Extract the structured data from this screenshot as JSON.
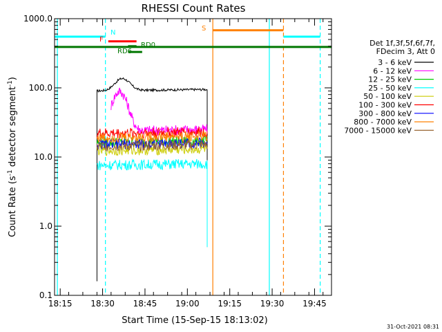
{
  "chart_data": {
    "type": "line",
    "title": "RHESSI Count Rates",
    "xlabel": "Start Time (15-Sep-15 18:13:02)",
    "ylabel_main": "Count Rate (s",
    "ylabel_sup": "-1",
    "ylabel_mid": " detector segment",
    "ylabel_tail": ")",
    "y_scale": "log",
    "ylim": [
      0.1,
      1000
    ],
    "xlim": [
      "18:13",
      "19:51"
    ],
    "x_ticks": [
      "18:15",
      "18:30",
      "18:45",
      "19:00",
      "19:15",
      "19:30",
      "19:45"
    ],
    "y_ticks": [
      "0.1",
      "1.0",
      "10.0",
      "100.0",
      "1000.0"
    ],
    "legend_header": [
      "Det 1f,3f,5f,6f,7f,",
      "FDecim 3, Att 0"
    ],
    "legend_position": "right",
    "series": [
      {
        "name": "3 - 6 keV",
        "color": "#000000",
        "start": "18:28",
        "end": "19:07",
        "level": 95,
        "peak_time": "18:37",
        "peak": 140
      },
      {
        "name": "6 - 12 keV",
        "color": "#ff00ff",
        "start": "18:33",
        "end": "19:07",
        "level": 25,
        "peak_time": "18:36",
        "peak": 90
      },
      {
        "name": "12 - 25 keV",
        "color": "#00cc00",
        "start": "18:28",
        "end": "19:07",
        "level": 17,
        "peak_time": "",
        "peak": 17
      },
      {
        "name": "25 - 50 keV",
        "color": "#00ffff",
        "start": "18:28",
        "end": "19:07",
        "level": 8,
        "peak_time": "",
        "peak": 8
      },
      {
        "name": "50 - 100 keV",
        "color": "#cccc00",
        "start": "18:28",
        "end": "19:07",
        "level": 13,
        "peak_time": "",
        "peak": 13
      },
      {
        "name": "100 - 300 keV",
        "color": "#ff0000",
        "start": "18:28",
        "end": "19:07",
        "level": 23,
        "peak_time": "",
        "peak": 23
      },
      {
        "name": "300 - 800 keV",
        "color": "#0000ff",
        "start": "18:28",
        "end": "19:07",
        "level": 16,
        "peak_time": "",
        "peak": 16
      },
      {
        "name": "800 - 7000 keV",
        "color": "#ff8000",
        "start": "18:28",
        "end": "19:07",
        "level": 20,
        "peak_time": "",
        "peak": 20
      },
      {
        "name": "7000 - 15000 keV",
        "color": "#996633",
        "start": "18:28",
        "end": "19:07",
        "level": 15,
        "peak_time": "",
        "peak": 15
      }
    ],
    "vertical_markers": [
      {
        "time": "18:14",
        "color": "#00ffff",
        "style": "solid"
      },
      {
        "time": "18:31",
        "color": "#00ffff",
        "style": "dashed"
      },
      {
        "time": "19:09",
        "color": "#ff8000",
        "style": "solid"
      },
      {
        "time": "19:29",
        "color": "#00ffff",
        "style": "solid"
      },
      {
        "time": "19:34",
        "color": "#ff8000",
        "style": "dashed"
      },
      {
        "time": "19:47",
        "color": "#00ffff",
        "style": "dashed"
      }
    ],
    "flag_bars": [
      {
        "label": "",
        "color": "#00ffff",
        "start": "18:13",
        "end": "18:31",
        "level": 550
      },
      {
        "label": "N",
        "color": "#00ffff",
        "start": "",
        "end": "",
        "level": 550
      },
      {
        "label": "F",
        "color": "#ff0000",
        "start": "18:32",
        "end": "18:42",
        "level": 470
      },
      {
        "label": "RD0",
        "color": "#007700",
        "start": "18:39",
        "end": "18:42",
        "level": 400
      },
      {
        "label": "RD6",
        "color": "#007700",
        "start": "18:39",
        "end": "18:44",
        "level": 330
      },
      {
        "label": "",
        "color": "#007700",
        "start": "18:13",
        "end": "19:51",
        "level": 390
      },
      {
        "label": "S",
        "color": "#ff8000",
        "start": "19:09",
        "end": "19:34",
        "level": 680
      },
      {
        "label": "",
        "color": "#00ffff",
        "start": "19:34",
        "end": "19:47",
        "level": 550
      }
    ],
    "timestamp": "31-Oct-2021 08:31"
  }
}
